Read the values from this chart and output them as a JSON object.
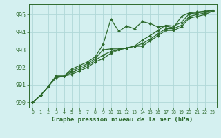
{
  "title": "Graphe pression niveau de la mer (hPa)",
  "background_color": "#d4f0f0",
  "grid_color": "#b0d8d8",
  "line_color": "#2d6a2d",
  "xlim": [
    -0.5,
    23.5
  ],
  "ylim": [
    989.7,
    995.6
  ],
  "yticks": [
    990,
    991,
    992,
    993,
    994,
    995
  ],
  "xticks": [
    0,
    1,
    2,
    3,
    4,
    5,
    6,
    7,
    8,
    9,
    10,
    11,
    12,
    13,
    14,
    15,
    16,
    17,
    18,
    19,
    20,
    21,
    22,
    23
  ],
  "series": [
    [
      990.0,
      990.4,
      990.9,
      991.5,
      991.5,
      991.9,
      992.1,
      992.3,
      992.6,
      993.3,
      994.75,
      994.05,
      994.35,
      994.2,
      994.6,
      994.5,
      994.3,
      994.35,
      994.25,
      994.9,
      995.1,
      995.15,
      995.2,
      995.25
    ],
    [
      990.0,
      990.4,
      990.9,
      991.5,
      991.5,
      991.8,
      992.0,
      992.2,
      992.5,
      993.0,
      993.05,
      993.05,
      993.1,
      993.2,
      993.55,
      993.8,
      994.1,
      994.4,
      994.35,
      994.55,
      995.05,
      995.1,
      995.15,
      995.25
    ],
    [
      990.0,
      990.4,
      990.9,
      991.5,
      991.5,
      991.7,
      991.9,
      992.1,
      992.4,
      992.7,
      992.9,
      993.0,
      993.1,
      993.2,
      993.35,
      993.6,
      993.9,
      994.2,
      994.2,
      994.4,
      994.9,
      995.0,
      995.1,
      995.2
    ],
    [
      990.0,
      990.4,
      990.9,
      991.4,
      991.5,
      991.6,
      991.8,
      992.0,
      992.3,
      992.5,
      992.8,
      993.0,
      993.1,
      993.2,
      993.2,
      993.5,
      993.8,
      994.1,
      994.1,
      994.3,
      994.8,
      994.9,
      995.0,
      995.2
    ]
  ],
  "ylabel_fontsize": 6.5,
  "xlabel_fontsize": 5.0,
  "xtick_fontsize": 4.8,
  "ytick_fontsize": 6.0,
  "title_fontsize": 6.5,
  "linewidth": 0.9,
  "markersize": 2.0
}
